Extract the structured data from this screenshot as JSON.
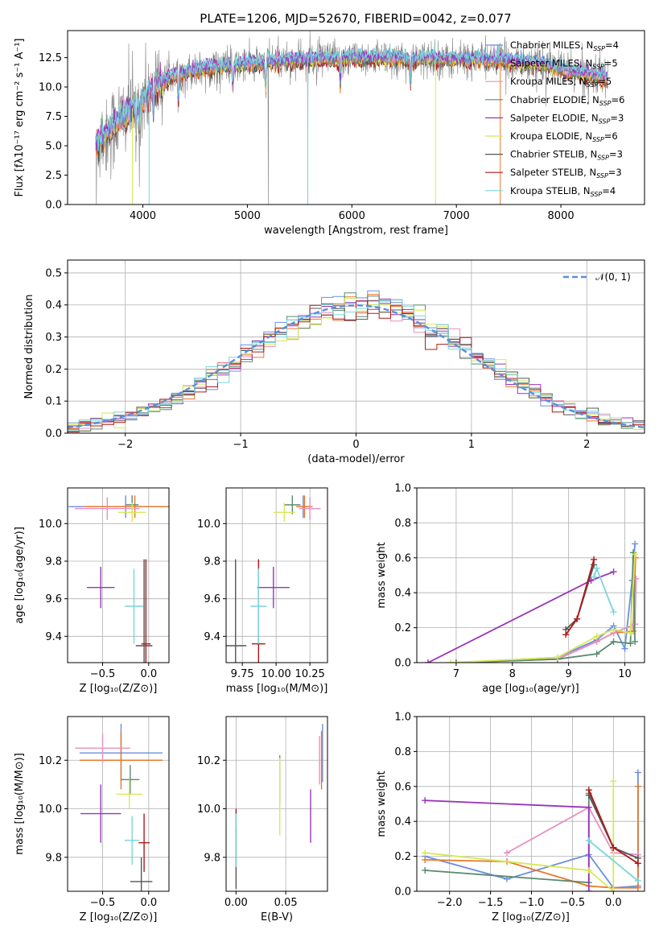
{
  "title": "PLATE=1206, MJD=52670, FIBERID=0042, z=0.077",
  "colors": {
    "Chabrier MILES": "#6a8fe0",
    "Salpeter MILES": "#e8782a",
    "Kroupa MILES": "#e98fc0",
    "Chabrier ELODIE": "#5a8a6e",
    "Salpeter ELODIE": "#9a35b8",
    "Kroupa ELODIE": "#d6e85a",
    "Chabrier STELIB": "#555555",
    "Salpeter STELIB": "#b01818",
    "Kroupa STELIB": "#79d6dc",
    "gaussian": "#5b8fd6",
    "observed": "#808080"
  },
  "chart_data": [
    {
      "id": "spectrum",
      "type": "line",
      "title": "PLATE=1206, MJD=52670, FIBERID=0042, z=0.077",
      "xlabel": "wavelength [Angstrom, rest frame]",
      "ylabel": "Flux [fλ10⁻¹⁷ erg cm⁻² s⁻¹ A⁻¹]",
      "xlim": [
        3280,
        8800
      ],
      "ylim": [
        0,
        14.8
      ],
      "xticks": [
        4000,
        5000,
        6000,
        7000,
        8000
      ],
      "yticks": [
        0.0,
        2.5,
        5.0,
        7.5,
        10.0,
        12.5
      ],
      "legend": [
        "Chabrier MILES, N_SSP=4",
        "Salpeter MILES, N_SSP=5",
        "Kroupa MILES, N_SSP=5",
        "Chabrier ELODIE, N_SSP=6",
        "Salpeter ELODIE, N_SSP=3",
        "Kroupa ELODIE, N_SSP=6",
        "Chabrier STELIB, N_SSP=3",
        "Salpeter STELIB, N_SSP=3",
        "Kroupa STELIB, N_SSP=4"
      ],
      "legend_position": "upper right",
      "continuum_x": [
        3550,
        3700,
        3850,
        4000,
        4100,
        4300,
        4600,
        5000,
        5500,
        6000,
        6500,
        7000,
        7400,
        7800,
        8100,
        8300,
        8450
      ],
      "continuum_y": [
        5.3,
        6.5,
        7.8,
        9.0,
        10.0,
        11.0,
        11.6,
        12.0,
        12.3,
        12.5,
        12.4,
        12.4,
        12.3,
        12.0,
        11.3,
        11.0,
        10.7
      ],
      "grid": false
    },
    {
      "id": "residuals",
      "type": "histogram",
      "xlabel": "(data-model)/error",
      "ylabel": "Normed distribution",
      "xlim": [
        -2.5,
        2.5
      ],
      "ylim": [
        0,
        0.54
      ],
      "xticks": [
        -2,
        -1,
        0,
        1,
        2
      ],
      "yticks": [
        0.0,
        0.1,
        0.2,
        0.3,
        0.4,
        0.5
      ],
      "legend": [
        "𝒩(0, 1)"
      ],
      "legend_position": "upper right",
      "bin_width": 0.1,
      "grid": true
    },
    {
      "id": "age-vs-Z",
      "type": "scatter",
      "xlabel": "Z [log₁₀(Z/Z⊙)]",
      "ylabel": "age  [log₁₀(age/yr)]",
      "xlim": [
        -0.88,
        0.22
      ],
      "ylim": [
        9.26,
        10.19
      ],
      "xticks": [
        -0.5,
        0.0
      ],
      "yticks": [
        9.4,
        9.6,
        9.8,
        10.0
      ],
      "points": [
        {
          "model": "Chabrier MILES",
          "x": -0.25,
          "y": 10.09,
          "xerr": 0.62,
          "yerr": 0.06
        },
        {
          "model": "Salpeter MILES",
          "x": -0.15,
          "y": 10.09,
          "xerr": 0.55,
          "yerr": 0.06
        },
        {
          "model": "Kroupa MILES",
          "x": -0.45,
          "y": 10.08,
          "xerr": 0.35,
          "yerr": 0.06
        },
        {
          "model": "Chabrier ELODIE",
          "x": -0.18,
          "y": 10.1,
          "xerr": 0.07,
          "yerr": 0.05
        },
        {
          "model": "Salpeter ELODIE",
          "x": -0.52,
          "y": 9.66,
          "xerr": 0.15,
          "yerr": 0.11
        },
        {
          "model": "Kroupa ELODIE",
          "x": -0.18,
          "y": 10.06,
          "xerr": 0.15,
          "yerr": 0.05
        },
        {
          "model": "Chabrier STELIB",
          "x": -0.05,
          "y": 9.35,
          "xerr": 0.09,
          "yerr": 0.46
        },
        {
          "model": "Salpeter STELIB",
          "x": -0.03,
          "y": 9.36,
          "xerr": 0.05,
          "yerr": 0.45
        },
        {
          "model": "Kroupa STELIB",
          "x": -0.16,
          "y": 9.56,
          "xerr": 0.1,
          "yerr": 0.2
        }
      ],
      "grid": true
    },
    {
      "id": "age-vs-mass",
      "type": "scatter",
      "xlabel": "mass [log₁₀(M/M⊙)]",
      "ylabel": "",
      "xlim": [
        9.63,
        10.38
      ],
      "ylim": [
        9.26,
        10.19
      ],
      "xticks": [
        9.75,
        10.0,
        10.25
      ],
      "yticks": [
        9.4,
        9.6,
        9.8,
        10.0
      ],
      "points": [
        {
          "model": "Chabrier MILES",
          "x": 10.2,
          "y": 10.09,
          "xerr": 0.05,
          "yerr": 0.06
        },
        {
          "model": "Salpeter MILES",
          "x": 10.21,
          "y": 10.09,
          "xerr": 0.06,
          "yerr": 0.06
        },
        {
          "model": "Kroupa MILES",
          "x": 10.25,
          "y": 10.08,
          "xerr": 0.08,
          "yerr": 0.06
        },
        {
          "model": "Chabrier ELODIE",
          "x": 10.12,
          "y": 10.1,
          "xerr": 0.06,
          "yerr": 0.05
        },
        {
          "model": "Salpeter ELODIE",
          "x": 9.98,
          "y": 9.66,
          "xerr": 0.12,
          "yerr": 0.11
        },
        {
          "model": "Kroupa ELODIE",
          "x": 10.06,
          "y": 10.06,
          "xerr": 0.08,
          "yerr": 0.05
        },
        {
          "model": "Chabrier STELIB",
          "x": 9.7,
          "y": 9.35,
          "xerr": 0.08,
          "yerr": 0.46
        },
        {
          "model": "Salpeter STELIB",
          "x": 9.87,
          "y": 9.36,
          "xerr": 0.05,
          "yerr": 0.45
        },
        {
          "model": "Kroupa STELIB",
          "x": 9.87,
          "y": 9.56,
          "xerr": 0.06,
          "yerr": 0.2
        }
      ],
      "grid": true
    },
    {
      "id": "weight-vs-age",
      "type": "line",
      "xlabel": "age  [log₁₀(age/yr)]",
      "ylabel": "mass weight",
      "xlim": [
        6.3,
        10.35
      ],
      "ylim": [
        0,
        1.0
      ],
      "xticks": [
        7,
        8,
        9,
        10
      ],
      "yticks": [
        0.0,
        0.2,
        0.4,
        0.6,
        0.8,
        1.0
      ],
      "series": [
        {
          "model": "Chabrier MILES",
          "x": [
            7.0,
            8.8,
            9.5,
            9.8,
            10.0,
            10.13,
            10.18
          ],
          "y": [
            0.0,
            0.03,
            0.13,
            0.21,
            0.08,
            0.47,
            0.68
          ]
        },
        {
          "model": "Salpeter MILES",
          "x": [
            7.0,
            8.8,
            9.5,
            9.8,
            10.15,
            10.19
          ],
          "y": [
            0.0,
            0.02,
            0.12,
            0.17,
            0.18,
            0.6
          ]
        },
        {
          "model": "Kroupa MILES",
          "x": [
            8.8,
            9.5,
            9.8,
            10.18,
            10.2
          ],
          "y": [
            0.02,
            0.12,
            0.17,
            0.22,
            0.48
          ]
        },
        {
          "model": "Chabrier ELODIE",
          "x": [
            7.0,
            8.8,
            9.5,
            9.8,
            10.1,
            10.15,
            10.18
          ],
          "y": [
            0.0,
            0.02,
            0.05,
            0.12,
            0.11,
            0.63,
            0.12
          ]
        },
        {
          "model": "Salpeter ELODIE",
          "x": [
            6.5,
            9.4,
            9.8
          ],
          "y": [
            0.0,
            0.47,
            0.52
          ]
        },
        {
          "model": "Kroupa ELODIE",
          "x": [
            6.9,
            8.8,
            9.5,
            9.8,
            10.1,
            10.18
          ],
          "y": [
            0.0,
            0.03,
            0.15,
            0.19,
            0.17,
            0.62
          ]
        },
        {
          "model": "Chabrier STELIB",
          "x": [
            8.95,
            9.15,
            9.45
          ],
          "y": [
            0.19,
            0.25,
            0.56
          ]
        },
        {
          "model": "Salpeter STELIB",
          "x": [
            8.95,
            9.15,
            9.45
          ],
          "y": [
            0.16,
            0.25,
            0.59
          ]
        },
        {
          "model": "Kroupa STELIB",
          "x": [
            9.45,
            9.5,
            9.8
          ],
          "y": [
            0.49,
            0.54,
            0.29
          ]
        }
      ],
      "grid": true
    },
    {
      "id": "mass-vs-Z",
      "type": "scatter",
      "xlabel": "Z [log₁₀(Z/Z⊙)]",
      "ylabel": "mass [log₁₀(M/M⊙)]",
      "xlim": [
        -0.88,
        0.22
      ],
      "ylim": [
        9.66,
        10.38
      ],
      "xticks": [
        -0.5,
        0.0
      ],
      "yticks": [
        9.8,
        10.0,
        10.2
      ],
      "points": [
        {
          "model": "Chabrier MILES",
          "x": -0.3,
          "y": 10.23,
          "xerr": 0.45,
          "yerr": 0.12
        },
        {
          "model": "Salpeter MILES",
          "x": -0.3,
          "y": 10.2,
          "xerr": 0.45,
          "yerr": 0.12
        },
        {
          "model": "Kroupa MILES",
          "x": -0.5,
          "y": 10.25,
          "xerr": 0.3,
          "yerr": 0.06
        },
        {
          "model": "Chabrier ELODIE",
          "x": -0.2,
          "y": 10.12,
          "xerr": 0.1,
          "yerr": 0.06
        },
        {
          "model": "Salpeter ELODIE",
          "x": -0.52,
          "y": 9.98,
          "xerr": 0.22,
          "yerr": 0.12
        },
        {
          "model": "Kroupa ELODIE",
          "x": -0.21,
          "y": 10.06,
          "xerr": 0.14,
          "yerr": 0.06
        },
        {
          "model": "Chabrier STELIB",
          "x": -0.08,
          "y": 9.7,
          "xerr": 0.12,
          "yerr": 0.1
        },
        {
          "model": "Salpeter STELIB",
          "x": -0.05,
          "y": 9.86,
          "xerr": 0.06,
          "yerr": 0.12
        },
        {
          "model": "Kroupa STELIB",
          "x": -0.18,
          "y": 9.87,
          "xerr": 0.08,
          "yerr": 0.1
        }
      ],
      "grid": true
    },
    {
      "id": "mass-vs-ebv",
      "type": "scatter",
      "xlabel": "E(B-V)",
      "ylabel": "",
      "xlim": [
        -0.01,
        0.092
      ],
      "ylim": [
        9.66,
        10.38
      ],
      "xticks": [
        0.0,
        0.05
      ],
      "yticks": [
        9.8,
        10.0,
        10.2
      ],
      "points": [
        {
          "model": "Chabrier MILES",
          "x": 0.087,
          "y": 10.23,
          "xerr": 0,
          "yerr": 0.12
        },
        {
          "model": "Salpeter MILES",
          "x": 0.086,
          "y": 10.2,
          "xerr": 0,
          "yerr": 0.12
        },
        {
          "model": "Kroupa MILES",
          "x": 0.084,
          "y": 10.2,
          "xerr": 0,
          "yerr": 0.1
        },
        {
          "model": "Chabrier ELODIE",
          "x": 0.044,
          "y": 10.12,
          "xerr": 0,
          "yerr": 0.1
        },
        {
          "model": "Salpeter ELODIE",
          "x": 0.075,
          "y": 9.97,
          "xerr": 0,
          "yerr": 0.11
        },
        {
          "model": "Kroupa ELODIE",
          "x": 0.044,
          "y": 10.05,
          "xerr": 0,
          "yerr": 0.16
        },
        {
          "model": "Chabrier STELIB",
          "x": 0.0,
          "y": 9.8,
          "xerr": 0,
          "yerr": 0.13
        },
        {
          "model": "Salpeter STELIB",
          "x": 0.0,
          "y": 9.88,
          "xerr": 0,
          "yerr": 0.12
        },
        {
          "model": "Kroupa STELIB",
          "x": 0.0,
          "y": 9.87,
          "xerr": 0,
          "yerr": 0.11
        }
      ],
      "grid": true
    },
    {
      "id": "weight-vs-Z",
      "type": "line",
      "xlabel": "Z [log₁₀(Z/Z⊙)]",
      "ylabel": "mass weight",
      "xlim": [
        -2.4,
        0.38
      ],
      "ylim": [
        0,
        1.0
      ],
      "xticks": [
        -2.0,
        -1.5,
        -1.0,
        -0.5,
        0.0
      ],
      "yticks": [
        0.0,
        0.2,
        0.4,
        0.6,
        0.8,
        1.0
      ],
      "series": [
        {
          "model": "Chabrier MILES",
          "x": [
            -2.3,
            -1.3,
            -0.3,
            0.0,
            0.3,
            0.3
          ],
          "y": [
            0.2,
            0.07,
            0.21,
            0.02,
            0.03,
            0.68
          ]
        },
        {
          "model": "Salpeter MILES",
          "x": [
            -2.3,
            -1.3,
            -0.3,
            0.0,
            0.3,
            0.3
          ],
          "y": [
            0.18,
            0.17,
            0.03,
            0.02,
            0.02,
            0.6
          ]
        },
        {
          "model": "Kroupa MILES",
          "x": [
            -1.3,
            -0.3,
            0.0,
            0.3
          ],
          "y": [
            0.22,
            0.48,
            0.22,
            0.21
          ]
        },
        {
          "model": "Chabrier ELODIE",
          "x": [
            -2.3,
            -0.3,
            -0.3,
            0.0
          ],
          "y": [
            0.12,
            0.05,
            0.56,
            0.25
          ]
        },
        {
          "model": "Salpeter ELODIE",
          "x": [
            -2.3,
            -0.3,
            -0.3
          ],
          "y": [
            0.52,
            0.48,
            0.0
          ]
        },
        {
          "model": "Kroupa ELODIE",
          "x": [
            -2.3,
            -0.3,
            0.0,
            0.0
          ],
          "y": [
            0.22,
            0.12,
            0.0,
            0.63
          ]
        },
        {
          "model": "Chabrier STELIB",
          "x": [
            -0.3,
            0.0,
            0.3
          ],
          "y": [
            0.55,
            0.25,
            0.19
          ]
        },
        {
          "model": "Salpeter STELIB",
          "x": [
            -0.3,
            0.0,
            0.3
          ],
          "y": [
            0.58,
            0.25,
            0.16
          ]
        },
        {
          "model": "Kroupa STELIB",
          "x": [
            -0.3,
            0.3
          ],
          "y": [
            0.29,
            0.06
          ]
        }
      ],
      "grid": true
    }
  ]
}
